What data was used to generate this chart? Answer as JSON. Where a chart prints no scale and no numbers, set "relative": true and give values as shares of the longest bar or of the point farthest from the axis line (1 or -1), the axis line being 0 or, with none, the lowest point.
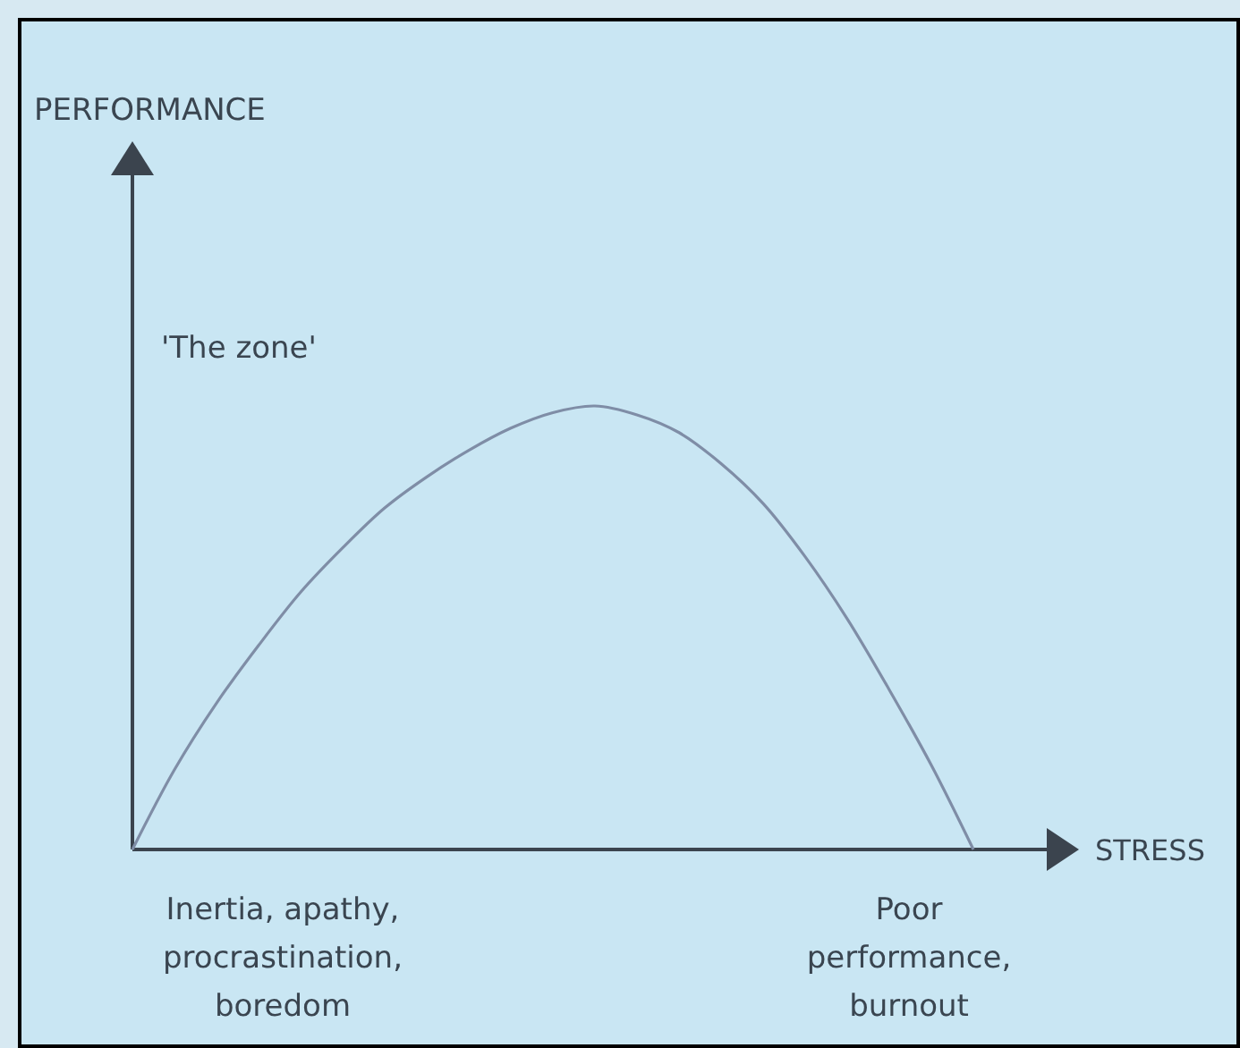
{
  "chart_data": {
    "type": "line",
    "relative": true,
    "xlabel": "STRESS",
    "categories": [
      null,
      null,
      null,
      null,
      null,
      null,
      null,
      null,
      null,
      null,
      null,
      null,
      null,
      null,
      null,
      null,
      null,
      null,
      null,
      null,
      null
    ],
    "series": [
      {
        "color": "#7f8da6",
        "values": [
          0,
          0.18,
          0.33,
          0.46,
          0.58,
          0.68,
          0.77,
          0.84,
          0.9,
          0.95,
          0.985,
          1,
          0.98,
          0.94,
          0.87,
          0.78,
          0.66,
          0.52,
          0.36,
          0.19,
          0
        ]
      }
    ],
    "annotations": [
      "PERFORMANCE",
      "'The zone'",
      "Inertia, apathy, procrastination, boredom",
      "Poor performance, burnout"
    ]
  }
}
